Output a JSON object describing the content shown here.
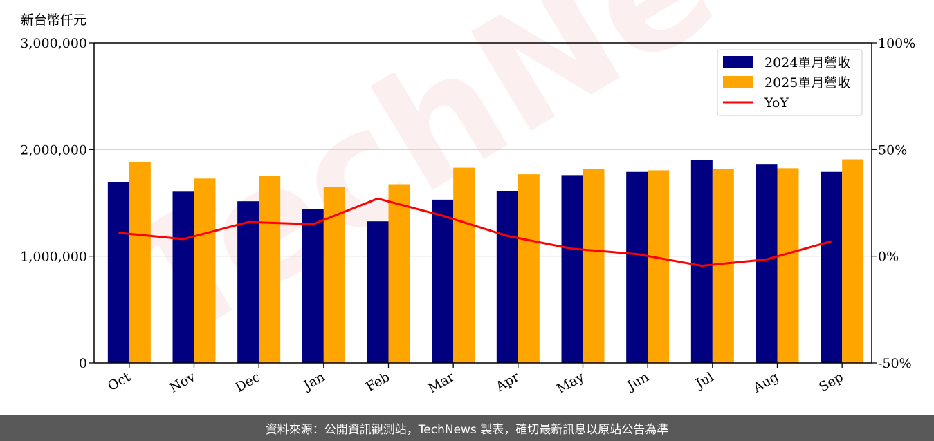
{
  "unit_label": "新台幣仟元",
  "watermark_text": "TechNews",
  "footer_text": "資料來源：公開資訊觀測站，TechNews 製表，確切最新訊息以原站公告為準",
  "chart_data": {
    "type": "bar",
    "categories": [
      "Oct",
      "Nov",
      "Dec",
      "Jan",
      "Feb",
      "Mar",
      "Apr",
      "May",
      "Jun",
      "Jul",
      "Aug",
      "Sep"
    ],
    "series": [
      {
        "name": "2024單月營收",
        "type": "bar",
        "axis": "left",
        "color": "#000080",
        "values": [
          1695000,
          1605000,
          1515000,
          1442000,
          1327000,
          1530000,
          1612000,
          1760000,
          1790000,
          1900000,
          1865000,
          1790000
        ]
      },
      {
        "name": "2025單月營收",
        "type": "bar",
        "axis": "left",
        "color": "#FFA500",
        "values": [
          1885000,
          1728000,
          1752000,
          1650000,
          1675000,
          1830000,
          1768000,
          1818000,
          1805000,
          1815000,
          1825000,
          1908000
        ]
      },
      {
        "name": "YoY",
        "type": "line",
        "axis": "right",
        "color": "#FF0000",
        "values": [
          11.0,
          8.0,
          16.0,
          15.0,
          27.0,
          19.0,
          9.5,
          3.5,
          1.0,
          -4.5,
          -1.5,
          7.0
        ]
      }
    ],
    "y_left": {
      "min": 0,
      "max": 3000000,
      "ticks": [
        0,
        1000000,
        2000000,
        3000000
      ],
      "tick_labels": [
        "0",
        "1,000,000",
        "2,000,000",
        "3,000,000"
      ]
    },
    "y_right": {
      "min": -50,
      "max": 100,
      "ticks": [
        -50,
        0,
        50,
        100
      ],
      "tick_labels": [
        "-50%",
        "0%",
        "50%",
        "100%"
      ]
    },
    "grid": "horizontal",
    "legend_position": "top-right"
  }
}
